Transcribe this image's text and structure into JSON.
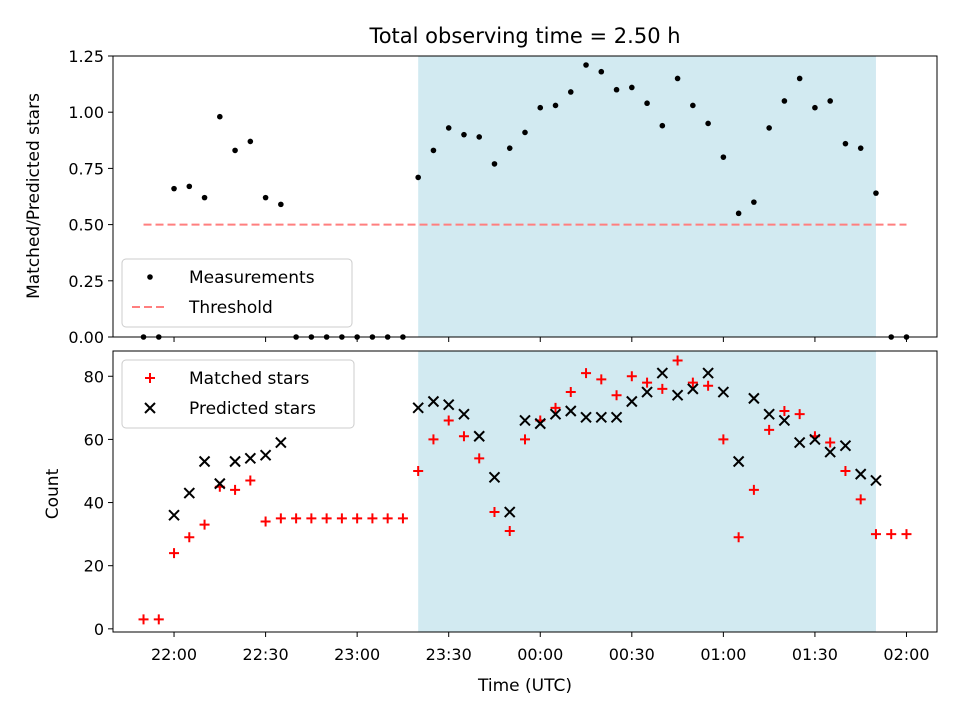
{
  "chart_data": [
    {
      "type": "scatter",
      "title": "Total observing time = 2.50 h",
      "ylabel": "Matched/Predicted stars",
      "ylim": [
        0,
        1.25
      ],
      "yticks": [
        0.0,
        0.25,
        0.5,
        0.75,
        1.0,
        1.25
      ],
      "ytick_labels": [
        "0.00",
        "0.25",
        "0.50",
        "0.75",
        "1.00",
        "1.25"
      ],
      "shaded_interval": [
        "23:20",
        "01:50"
      ],
      "shade_color": "#add8e6",
      "legend_position": "lower-left",
      "legend": [
        "Measurements",
        "Threshold"
      ],
      "series": [
        {
          "name": "Measurements",
          "marker": "dot",
          "color": "#000000",
          "points": [
            [
              "21:50",
              0.0
            ],
            [
              "21:55",
              0.0
            ],
            [
              "22:00",
              0.66
            ],
            [
              "22:05",
              0.67
            ],
            [
              "22:10",
              0.62
            ],
            [
              "22:15",
              0.98
            ],
            [
              "22:20",
              0.83
            ],
            [
              "22:25",
              0.87
            ],
            [
              "22:30",
              0.62
            ],
            [
              "22:35",
              0.59
            ],
            [
              "22:40",
              0.0
            ],
            [
              "22:45",
              0.0
            ],
            [
              "22:50",
              0.0
            ],
            [
              "22:55",
              0.0
            ],
            [
              "23:00",
              0.0
            ],
            [
              "23:05",
              0.0
            ],
            [
              "23:10",
              0.0
            ],
            [
              "23:15",
              0.0
            ],
            [
              "23:20",
              0.71
            ],
            [
              "23:25",
              0.83
            ],
            [
              "23:30",
              0.93
            ],
            [
              "23:35",
              0.9
            ],
            [
              "23:40",
              0.89
            ],
            [
              "23:45",
              0.77
            ],
            [
              "23:50",
              0.84
            ],
            [
              "23:55",
              0.91
            ],
            [
              "00:00",
              1.02
            ],
            [
              "00:05",
              1.03
            ],
            [
              "00:10",
              1.09
            ],
            [
              "00:15",
              1.21
            ],
            [
              "00:20",
              1.18
            ],
            [
              "00:25",
              1.1
            ],
            [
              "00:30",
              1.11
            ],
            [
              "00:35",
              1.04
            ],
            [
              "00:40",
              0.94
            ],
            [
              "00:45",
              1.15
            ],
            [
              "00:50",
              1.03
            ],
            [
              "00:55",
              0.95
            ],
            [
              "01:00",
              0.8
            ],
            [
              "01:05",
              0.55
            ],
            [
              "01:10",
              0.6
            ],
            [
              "01:15",
              0.93
            ],
            [
              "01:20",
              1.05
            ],
            [
              "01:25",
              1.15
            ],
            [
              "01:30",
              1.02
            ],
            [
              "01:35",
              1.05
            ],
            [
              "01:40",
              0.86
            ],
            [
              "01:45",
              0.84
            ],
            [
              "01:50",
              0.64
            ],
            [
              "01:55",
              0.0
            ],
            [
              "02:00",
              0.0
            ]
          ]
        },
        {
          "name": "Threshold",
          "type": "line",
          "style": "dashed",
          "color": "#ff7f7f",
          "points": [
            [
              "21:50",
              0.5
            ],
            [
              "02:00",
              0.5
            ]
          ]
        }
      ]
    },
    {
      "type": "scatter",
      "xlabel": "Time (UTC)",
      "ylabel": "Count",
      "ylim": [
        -1,
        88
      ],
      "yticks": [
        0,
        20,
        40,
        60,
        80
      ],
      "ytick_labels": [
        "0",
        "20",
        "40",
        "60",
        "80"
      ],
      "xticks": [
        "22:00",
        "22:30",
        "23:00",
        "23:30",
        "00:00",
        "00:30",
        "01:00",
        "01:30",
        "02:00"
      ],
      "shaded_interval": [
        "23:20",
        "01:50"
      ],
      "shade_color": "#add8e6",
      "legend_position": "upper-left",
      "legend": [
        "Matched stars",
        "Predicted stars"
      ],
      "series": [
        {
          "name": "Matched stars",
          "marker": "plus",
          "color": "#ff0000",
          "points": [
            [
              "21:50",
              3
            ],
            [
              "21:55",
              3
            ],
            [
              "22:00",
              24
            ],
            [
              "22:05",
              29
            ],
            [
              "22:10",
              33
            ],
            [
              "22:15",
              45
            ],
            [
              "22:20",
              44
            ],
            [
              "22:25",
              47
            ],
            [
              "22:30",
              34
            ],
            [
              "22:35",
              35
            ],
            [
              "22:40",
              35
            ],
            [
              "22:45",
              35
            ],
            [
              "22:50",
              35
            ],
            [
              "22:55",
              35
            ],
            [
              "23:00",
              35
            ],
            [
              "23:05",
              35
            ],
            [
              "23:10",
              35
            ],
            [
              "23:15",
              35
            ],
            [
              "23:20",
              50
            ],
            [
              "23:25",
              60
            ],
            [
              "23:30",
              66
            ],
            [
              "23:35",
              61
            ],
            [
              "23:40",
              54
            ],
            [
              "23:45",
              37
            ],
            [
              "23:50",
              31
            ],
            [
              "23:55",
              60
            ],
            [
              "00:00",
              66
            ],
            [
              "00:05",
              70
            ],
            [
              "00:10",
              75
            ],
            [
              "00:15",
              81
            ],
            [
              "00:20",
              79
            ],
            [
              "00:25",
              74
            ],
            [
              "00:30",
              80
            ],
            [
              "00:35",
              78
            ],
            [
              "00:40",
              76
            ],
            [
              "00:45",
              85
            ],
            [
              "00:50",
              78
            ],
            [
              "00:55",
              77
            ],
            [
              "01:00",
              60
            ],
            [
              "01:05",
              29
            ],
            [
              "01:10",
              44
            ],
            [
              "01:15",
              63
            ],
            [
              "01:20",
              69
            ],
            [
              "01:25",
              68
            ],
            [
              "01:30",
              61
            ],
            [
              "01:35",
              59
            ],
            [
              "01:40",
              50
            ],
            [
              "01:45",
              41
            ],
            [
              "01:50",
              30
            ],
            [
              "01:55",
              30
            ],
            [
              "02:00",
              30
            ]
          ]
        },
        {
          "name": "Predicted stars",
          "marker": "x",
          "color": "#000000",
          "points": [
            [
              "22:00",
              36
            ],
            [
              "22:05",
              43
            ],
            [
              "22:10",
              53
            ],
            [
              "22:15",
              46
            ],
            [
              "22:20",
              53
            ],
            [
              "22:25",
              54
            ],
            [
              "22:30",
              55
            ],
            [
              "22:35",
              59
            ],
            [
              "23:20",
              70
            ],
            [
              "23:25",
              72
            ],
            [
              "23:30",
              71
            ],
            [
              "23:35",
              68
            ],
            [
              "23:40",
              61
            ],
            [
              "23:45",
              48
            ],
            [
              "23:50",
              37
            ],
            [
              "23:55",
              66
            ],
            [
              "00:00",
              65
            ],
            [
              "00:05",
              68
            ],
            [
              "00:10",
              69
            ],
            [
              "00:15",
              67
            ],
            [
              "00:20",
              67
            ],
            [
              "00:25",
              67
            ],
            [
              "00:30",
              72
            ],
            [
              "00:35",
              75
            ],
            [
              "00:40",
              81
            ],
            [
              "00:45",
              74
            ],
            [
              "00:50",
              76
            ],
            [
              "00:55",
              81
            ],
            [
              "01:00",
              75
            ],
            [
              "01:05",
              53
            ],
            [
              "01:10",
              73
            ],
            [
              "01:15",
              68
            ],
            [
              "01:20",
              66
            ],
            [
              "01:25",
              59
            ],
            [
              "01:30",
              60
            ],
            [
              "01:35",
              56
            ],
            [
              "01:40",
              58
            ],
            [
              "01:45",
              49
            ],
            [
              "01:50",
              47
            ]
          ]
        }
      ]
    }
  ]
}
